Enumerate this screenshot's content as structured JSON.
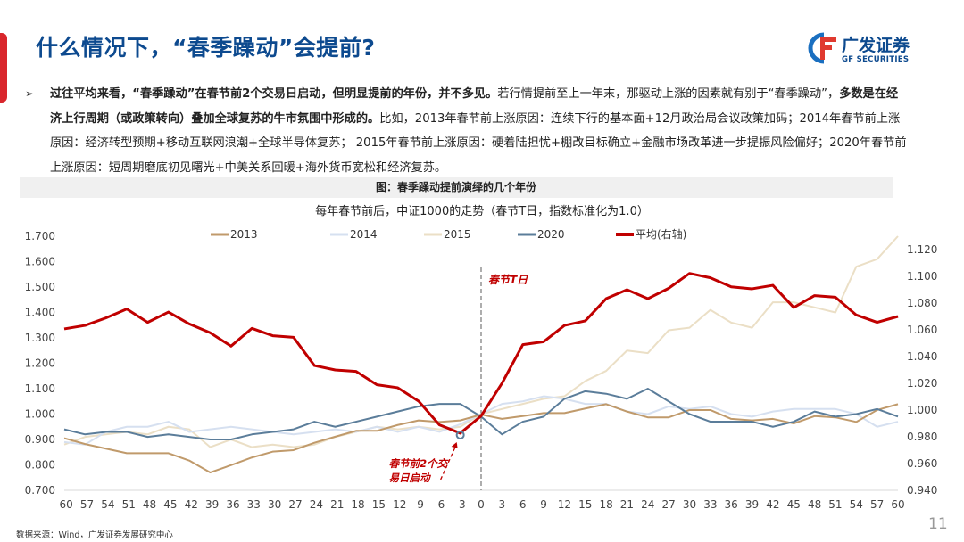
{
  "header": {
    "title": "什么情况下，“春季躁动”会提前?",
    "logo_cn": "广发证券",
    "logo_en": "GF SECURITIES"
  },
  "paragraph": {
    "bold1": "过往平均来看，“春季躁动”在春节前2个交易日启动，但明显提前的年份，并不多见。",
    "normal1": "若行情提前至上一年末，那驱动上涨的因素就有别于“春季躁动”，",
    "bold2": "多数是在经济上行周期（或政策转向）叠加全球复苏的牛市氛围中形成的。",
    "normal2": "比如，2013年春节前上涨原因：连续下行的基本面+12月政治局会议政策加码；2014年春节前上涨原因：经济转型预期+移动互联网浪潮+全球半导体复苏； 2015年春节前上涨原因：硬着陆担忧+棚改目标确立+金融市场改革进一步提振风险偏好；2020年春节前上涨原因：短周期磨底初见曙光+中美关系回暖+海外货币宽松和经济复苏。"
  },
  "caption": "图：春季躁动提前演绎的几个年份",
  "footer": {
    "source": "数据来源：Wind，广发证券发展研究中心",
    "page": "11"
  },
  "chart_data": {
    "type": "line",
    "title": "每年春节前后，中证1000的走势（春节T日，指数标准化为1.0）",
    "x": [
      -60,
      -57,
      -54,
      -51,
      -48,
      -45,
      -42,
      -39,
      -36,
      -33,
      -30,
      -27,
      -24,
      -21,
      -18,
      -15,
      -12,
      -9,
      -6,
      -3,
      0,
      3,
      6,
      9,
      12,
      15,
      18,
      21,
      24,
      27,
      30,
      33,
      36,
      39,
      42,
      45,
      48,
      51,
      54,
      57,
      60
    ],
    "xlim": [
      -60,
      60
    ],
    "ylim_left": [
      0.7,
      1.7
    ],
    "ylim_right": [
      0.94,
      1.12
    ],
    "yticks_left": [
      "0.700",
      "0.800",
      "0.900",
      "1.000",
      "1.100",
      "1.200",
      "1.300",
      "1.400",
      "1.500",
      "1.600",
      "1.700"
    ],
    "yticks_right": [
      "0.940",
      "0.960",
      "0.980",
      "1.000",
      "1.020",
      "1.040",
      "1.060",
      "1.080",
      "1.100",
      "1.120"
    ],
    "legend_position": "top",
    "grid": false,
    "series": [
      {
        "name": "2013",
        "axis": "left",
        "color": "#c09a6b",
        "values": [
          0.905,
          0.882,
          0.864,
          0.846,
          0.846,
          0.846,
          0.817,
          0.77,
          0.799,
          0.829,
          0.852,
          0.858,
          0.887,
          0.911,
          0.934,
          0.934,
          0.957,
          0.975,
          0.969,
          0.975,
          0.998,
          0.981,
          0.992,
          1.004,
          1.004,
          1.022,
          1.039,
          1.01,
          0.987,
          0.987,
          1.016,
          1.016,
          0.981,
          0.975,
          0.981,
          0.963,
          0.992,
          0.987,
          0.969,
          1.016,
          1.039
        ]
      },
      {
        "name": "2014",
        "axis": "left",
        "color": "#d6e0f0",
        "values": [
          0.89,
          0.88,
          0.93,
          0.95,
          0.95,
          0.97,
          0.93,
          0.94,
          0.95,
          0.94,
          0.93,
          0.92,
          0.93,
          0.94,
          0.93,
          0.95,
          0.93,
          0.95,
          0.93,
          0.96,
          1.0,
          1.04,
          1.05,
          1.07,
          1.06,
          1.04,
          1.04,
          1.01,
          1.0,
          1.03,
          1.02,
          1.03,
          1.0,
          0.99,
          1.01,
          1.02,
          1.02,
          1.02,
          1.0,
          0.95,
          0.97
        ]
      },
      {
        "name": "2015",
        "axis": "left",
        "color": "#ebdfc6",
        "values": [
          0.88,
          0.91,
          0.92,
          0.93,
          0.92,
          0.95,
          0.94,
          0.87,
          0.9,
          0.87,
          0.88,
          0.87,
          0.88,
          0.91,
          0.93,
          0.95,
          0.94,
          0.95,
          0.94,
          0.95,
          1.0,
          1.02,
          1.04,
          1.06,
          1.07,
          1.13,
          1.17,
          1.25,
          1.24,
          1.33,
          1.34,
          1.41,
          1.36,
          1.34,
          1.44,
          1.44,
          1.42,
          1.4,
          1.58,
          1.61,
          1.7
        ]
      },
      {
        "name": "2020",
        "axis": "left",
        "color": "#5b7d9a",
        "values": [
          0.94,
          0.92,
          0.93,
          0.93,
          0.91,
          0.92,
          0.91,
          0.9,
          0.9,
          0.92,
          0.93,
          0.94,
          0.97,
          0.95,
          0.97,
          0.99,
          1.01,
          1.03,
          1.04,
          1.04,
          0.99,
          0.92,
          0.97,
          0.99,
          1.06,
          1.09,
          1.08,
          1.06,
          1.1,
          1.05,
          1.0,
          0.97,
          0.97,
          0.97,
          0.95,
          0.97,
          1.01,
          0.99,
          1.0,
          1.02,
          0.99
        ]
      },
      {
        "name": "平均(右轴)",
        "axis": "right",
        "color": "#c00000",
        "values": [
          1.0607,
          1.0633,
          1.0689,
          1.0756,
          1.0656,
          1.0733,
          1.0644,
          1.0578,
          1.0478,
          1.0611,
          1.0556,
          1.0544,
          1.0333,
          1.03,
          1.0289,
          1.0189,
          1.0167,
          1.0067,
          0.9889,
          0.9827,
          0.9956,
          1.02,
          1.0489,
          1.0511,
          1.0633,
          1.0667,
          1.0833,
          1.09,
          1.0833,
          1.0911,
          1.1022,
          1.0989,
          1.0922,
          1.0907,
          1.0933,
          1.0767,
          1.0856,
          1.0844,
          1.0711,
          1.0656,
          1.07
        ]
      }
    ],
    "annotations": {
      "t_day": "春节T日",
      "start": [
        "春节前2个交",
        "易日启动"
      ],
      "start_x": -3
    }
  }
}
